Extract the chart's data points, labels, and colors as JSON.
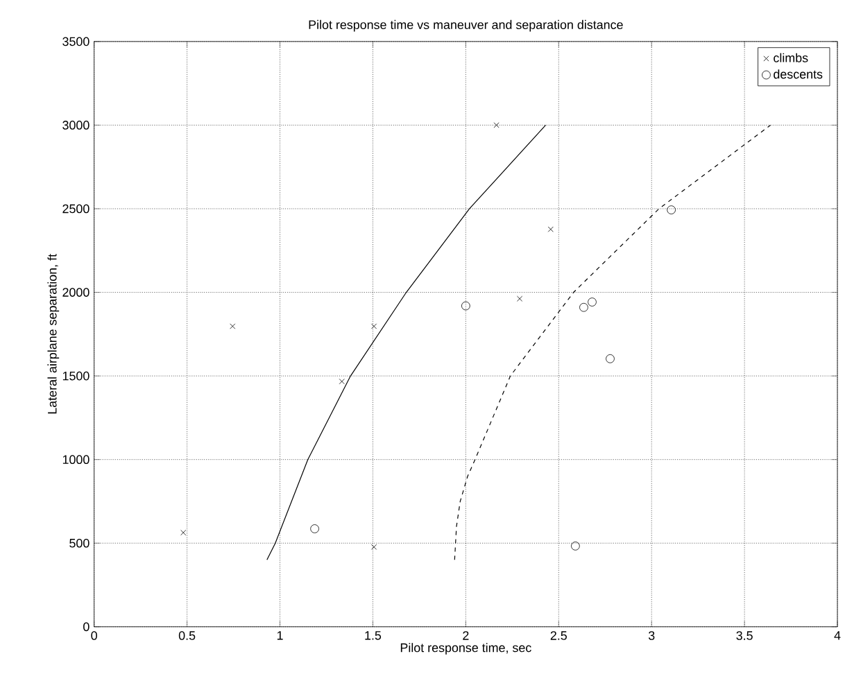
{
  "chart_data": {
    "type": "scatter",
    "title": "Pilot response time vs maneuver and separation distance",
    "xlabel": "Pilot response time, sec",
    "ylabel": "Lateral airplane separation, ft",
    "xlim": [
      0,
      4
    ],
    "ylim": [
      0,
      3500
    ],
    "xticks": [
      0,
      0.5,
      1,
      1.5,
      2,
      2.5,
      3,
      3.5,
      4
    ],
    "yticks": [
      0,
      500,
      1000,
      1500,
      2000,
      2500,
      3000,
      3500
    ],
    "grid": true,
    "legend": "top right",
    "series": [
      {
        "name": "climbs",
        "color": "#000000",
        "marker": "cross",
        "x": [
          0.48,
          0.745,
          1.333,
          1.506,
          1.506,
          2.165,
          2.29,
          2.457
        ],
        "values": [
          563,
          1797,
          1467,
          1797,
          477,
          3000,
          1962,
          2377
        ]
      },
      {
        "name": "descents",
        "color": "#000000",
        "marker": "circle",
        "x": [
          1.187,
          2.0,
          2.59,
          2.635,
          2.68,
          2.777,
          3.106
        ],
        "values": [
          586,
          1919,
          483,
          1910,
          1942,
          1603,
          2493
        ]
      },
      {
        "type": "line",
        "color": "#000000",
        "line_style": "solid",
        "marker": "none",
        "x": [
          0.93,
          0.975,
          1.15,
          1.38,
          1.68,
          2.02,
          2.43
        ],
        "values": [
          400,
          500,
          1000,
          1500,
          2000,
          2500,
          3000
        ]
      },
      {
        "type": "line",
        "color": "#000000",
        "line_style": "dashed",
        "marker": "none",
        "x": [
          1.94,
          1.95,
          1.97,
          2.01,
          2.05,
          2.24,
          2.58,
          3.04,
          3.64
        ],
        "values": [
          400,
          600,
          750,
          900,
          1000,
          1500,
          2000,
          2500,
          3000
        ]
      }
    ]
  }
}
